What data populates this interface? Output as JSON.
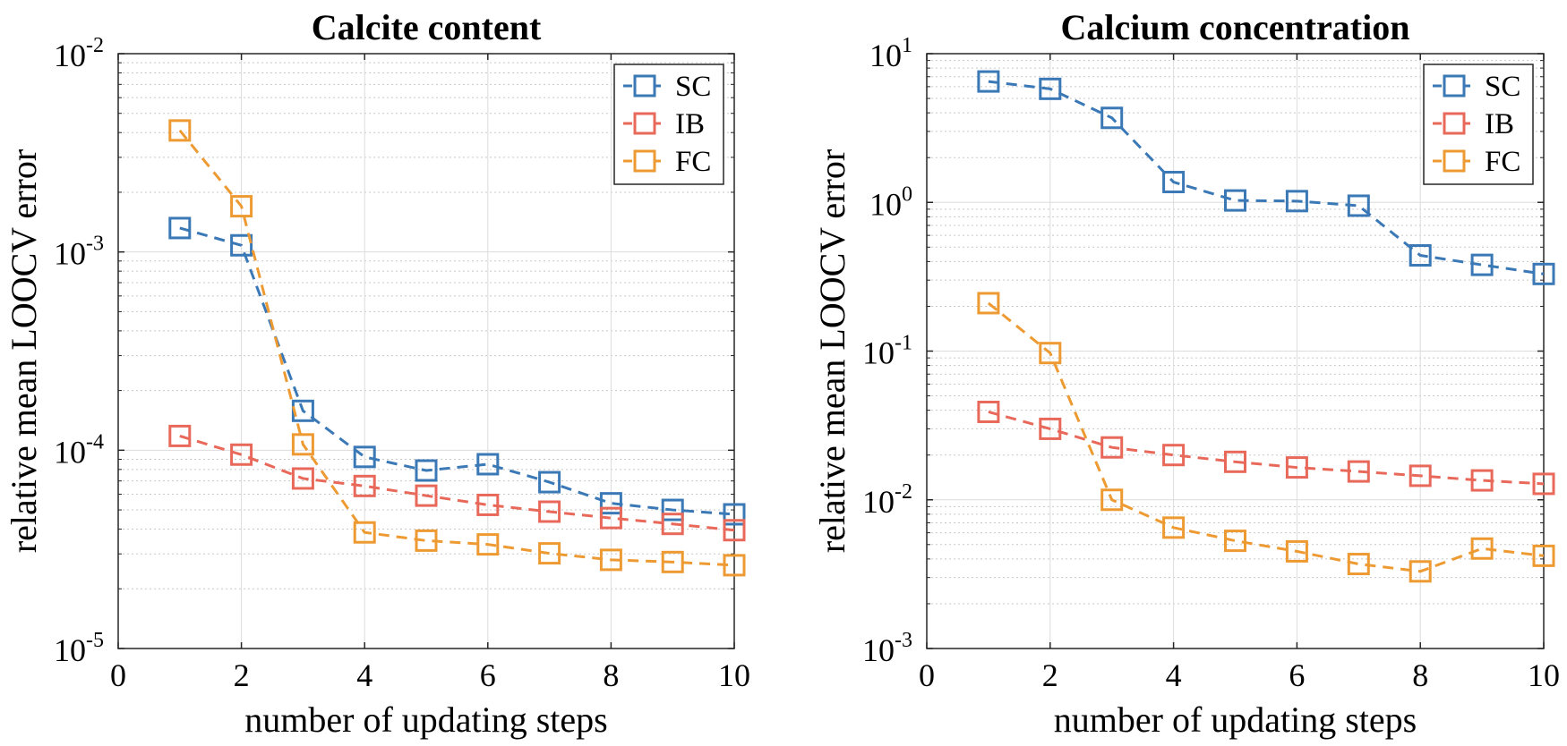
{
  "chart_data": [
    {
      "type": "line",
      "title": "Calcite content",
      "xlabel": "number of updating steps",
      "ylabel": "relative mean LOOCV error",
      "yscale": "log",
      "xlim": [
        0,
        10
      ],
      "ylim": [
        1e-05,
        0.01
      ],
      "grid": true,
      "legend_position": "top-right",
      "x_ticks": [
        "0",
        "2",
        "4",
        "6",
        "8",
        "10"
      ],
      "y_ticks": [
        {
          "base": "10",
          "exp": "-5"
        },
        {
          "base": "10",
          "exp": "-4"
        },
        {
          "base": "10",
          "exp": "-3"
        },
        {
          "base": "10",
          "exp": "-2"
        }
      ],
      "x": [
        1,
        2,
        3,
        4,
        5,
        6,
        7,
        8,
        9,
        10
      ],
      "series": [
        {
          "name": "SC",
          "color": "#3a78b6",
          "values": [
            0.00132,
            0.00108,
            0.000158,
            9.25e-05,
            7.9e-05,
            8.5e-05,
            6.9e-05,
            5.4e-05,
            5e-05,
            4.75e-05
          ]
        },
        {
          "name": "IB",
          "color": "#e8695a",
          "values": [
            0.000118,
            9.5e-05,
            7.2e-05,
            6.6e-05,
            5.9e-05,
            5.3e-05,
            4.9e-05,
            4.55e-05,
            4.25e-05,
            3.95e-05
          ]
        },
        {
          "name": "FC",
          "color": "#ee9a33",
          "values": [
            0.0041,
            0.0017,
            0.000107,
            3.85e-05,
            3.5e-05,
            3.35e-05,
            3.02e-05,
            2.8e-05,
            2.73e-05,
            2.63e-05
          ]
        }
      ]
    },
    {
      "type": "line",
      "title": "Calcium concentration",
      "xlabel": "number of updating steps",
      "ylabel": "relative mean LOOCV error",
      "yscale": "log",
      "xlim": [
        0,
        10
      ],
      "ylim": [
        0.001,
        10
      ],
      "grid": true,
      "legend_position": "top-right",
      "x_ticks": [
        "0",
        "2",
        "4",
        "6",
        "8",
        "10"
      ],
      "y_ticks": [
        {
          "base": "10",
          "exp": "-3"
        },
        {
          "base": "10",
          "exp": "-2"
        },
        {
          "base": "10",
          "exp": "-1"
        },
        {
          "base": "10",
          "exp": "0"
        },
        {
          "base": "10",
          "exp": "1"
        }
      ],
      "x": [
        1,
        2,
        3,
        4,
        5,
        6,
        7,
        8,
        9,
        10
      ],
      "series": [
        {
          "name": "SC",
          "color": "#3a78b6",
          "values": [
            6.5,
            5.8,
            3.7,
            1.37,
            1.03,
            1.02,
            0.95,
            0.44,
            0.38,
            0.33
          ]
        },
        {
          "name": "IB",
          "color": "#e8695a",
          "values": [
            0.039,
            0.03,
            0.0225,
            0.02,
            0.018,
            0.0165,
            0.0155,
            0.0145,
            0.0135,
            0.0128
          ]
        },
        {
          "name": "FC",
          "color": "#ee9a33",
          "values": [
            0.21,
            0.097,
            0.01,
            0.0065,
            0.0053,
            0.0045,
            0.0037,
            0.0033,
            0.0047,
            0.0042
          ]
        }
      ]
    }
  ]
}
